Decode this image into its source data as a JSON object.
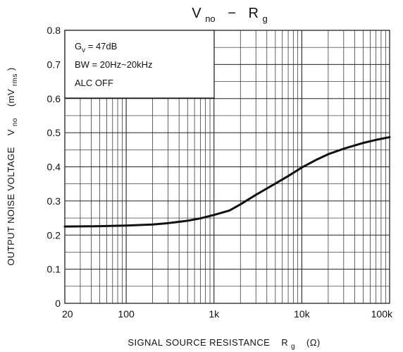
{
  "chart_data": {
    "type": "line",
    "title": {
      "main": "V",
      "main_sub": "no",
      "separator": "−",
      "secondary": "R",
      "secondary_sub": "g"
    },
    "xlabel": {
      "text": "SIGNAL SOURCE RESISTANCE",
      "symbol": "R",
      "symbol_sub": "g",
      "unit": "(Ω)"
    },
    "ylabel": {
      "text": "OUTPUT NOISE VOLTAGE",
      "symbol": "V",
      "symbol_sub": "no",
      "unit_prefix": "(mV",
      "unit_sub": "rms",
      "unit_suffix": ")"
    },
    "x_scale": "log",
    "xlim": [
      20,
      100000
    ],
    "ylim": [
      0,
      0.8
    ],
    "x_ticks": [
      20,
      100,
      1000,
      10000,
      100000
    ],
    "x_tick_labels": [
      "20",
      "100",
      "1k",
      "10k",
      "100k"
    ],
    "y_ticks": [
      0,
      0.1,
      0.2,
      0.3,
      0.4,
      0.5,
      0.6,
      0.7,
      0.8
    ],
    "y_tick_labels": [
      "0",
      "0.1",
      "0.2",
      "0.3",
      "0.4",
      "0.5",
      "0.6",
      "0.7",
      "0.8"
    ],
    "grid": true,
    "annotations": [
      {
        "main": "G",
        "sub": "v",
        "suffix": " = 47dB"
      },
      {
        "main": "BW = 20Hz~20kHz",
        "sub": "",
        "suffix": ""
      },
      {
        "main": "ALC OFF",
        "sub": "",
        "suffix": ""
      }
    ],
    "series": [
      {
        "x": [
          20,
          50,
          100,
          200,
          300,
          500,
          700,
          1000,
          1500,
          2000,
          3000,
          5000,
          7000,
          10000,
          15000,
          20000,
          30000,
          50000,
          70000,
          100000
        ],
        "y": [
          0.225,
          0.226,
          0.228,
          0.231,
          0.235,
          0.242,
          0.249,
          0.259,
          0.272,
          0.29,
          0.318,
          0.351,
          0.373,
          0.398,
          0.422,
          0.437,
          0.453,
          0.47,
          0.479,
          0.487
        ]
      }
    ]
  }
}
